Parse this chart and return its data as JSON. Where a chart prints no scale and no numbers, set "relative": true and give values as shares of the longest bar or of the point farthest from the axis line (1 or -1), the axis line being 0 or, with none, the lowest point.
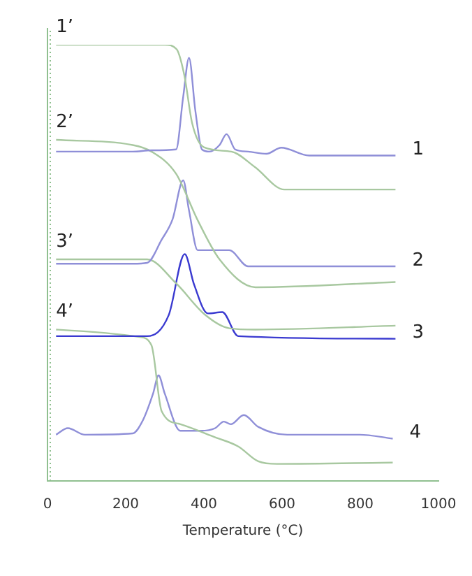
{
  "chart_data": {
    "type": "line",
    "relative": true,
    "xlabel": "Temperature (°C)",
    "xlim": [
      0,
      1000
    ],
    "xticks": [
      0,
      200,
      400,
      600,
      800,
      1000
    ],
    "grid": false,
    "legend": false,
    "marker": "none",
    "line_style": "solid",
    "tick_labels": "x",
    "series": [
      {
        "color": "#a8c8a0",
        "x": [
          22,
          300,
          330,
          350,
          370,
          400,
          470,
          530,
          606,
          890
        ],
        "values": [
          1.0,
          1.0,
          0.99,
          0.93,
          0.82,
          0.765,
          0.755,
          0.72,
          0.668,
          0.668
        ]
      },
      {
        "color": "#8f8fd8",
        "x": [
          22,
          218,
          266,
          329,
          347,
          362,
          378,
          395,
          414,
          440,
          458,
          480,
          513,
          560,
          598,
          669,
          890
        ],
        "values": [
          0.755,
          0.755,
          0.758,
          0.76,
          0.88,
          0.97,
          0.85,
          0.76,
          0.755,
          0.77,
          0.795,
          0.76,
          0.755,
          0.75,
          0.764,
          0.746,
          0.746
        ]
      },
      {
        "color": "#a8c8a0",
        "x": [
          22,
          218,
          266,
          329,
          384,
          440,
          532,
          890
        ],
        "values": [
          0.782,
          0.77,
          0.755,
          0.704,
          0.598,
          0.508,
          0.444,
          0.456
        ]
      },
      {
        "color": "#8f8fd8",
        "x": [
          22,
          218,
          255,
          292,
          320,
          347,
          362,
          384,
          465,
          513,
          890
        ],
        "values": [
          0.498,
          0.498,
          0.5,
          0.553,
          0.6,
          0.689,
          0.62,
          0.529,
          0.529,
          0.492,
          0.492
        ]
      },
      {
        "color": "#a8c8a0",
        "x": [
          22,
          255,
          329,
          403,
          465,
          532,
          890
        ],
        "values": [
          0.508,
          0.508,
          0.453,
          0.381,
          0.35,
          0.347,
          0.356
        ]
      },
      {
        "color": "#3a3ad0",
        "x": [
          22,
          255,
          310,
          351,
          375,
          410,
          447,
          488,
          890
        ],
        "values": [
          0.332,
          0.332,
          0.38,
          0.52,
          0.45,
          0.384,
          0.387,
          0.332,
          0.326
        ]
      },
      {
        "color": "#a8c8a0",
        "x": [
          22,
          236,
          266,
          292,
          340,
          429,
          488,
          539,
          587,
          883
        ],
        "values": [
          0.347,
          0.33,
          0.311,
          0.16,
          0.13,
          0.1,
          0.079,
          0.045,
          0.039,
          0.042
        ]
      },
      {
        "color": "#8f8fd8",
        "x": [
          22,
          52,
          96,
          218,
          244,
          270,
          284,
          300,
          340,
          392,
          429,
          451,
          469,
          502,
          539,
          613,
          798,
          883
        ],
        "values": [
          0.106,
          0.121,
          0.106,
          0.109,
          0.139,
          0.2,
          0.242,
          0.2,
          0.115,
          0.115,
          0.121,
          0.136,
          0.13,
          0.151,
          0.124,
          0.106,
          0.106,
          0.097
        ]
      }
    ],
    "annotations": [
      {
        "text": "1’",
        "x": 22,
        "y": 1.0
      },
      {
        "text": "1",
        "x": 890,
        "y": 0.746
      },
      {
        "text": "2’",
        "x": 22,
        "y": 0.782
      },
      {
        "text": "2",
        "x": 890,
        "y": 0.492
      },
      {
        "text": "3’",
        "x": 22,
        "y": 0.508
      },
      {
        "text": "3",
        "x": 890,
        "y": 0.326
      },
      {
        "text": "4’",
        "x": 22,
        "y": 0.347
      },
      {
        "text": "4",
        "x": 883,
        "y": 0.097
      }
    ]
  }
}
